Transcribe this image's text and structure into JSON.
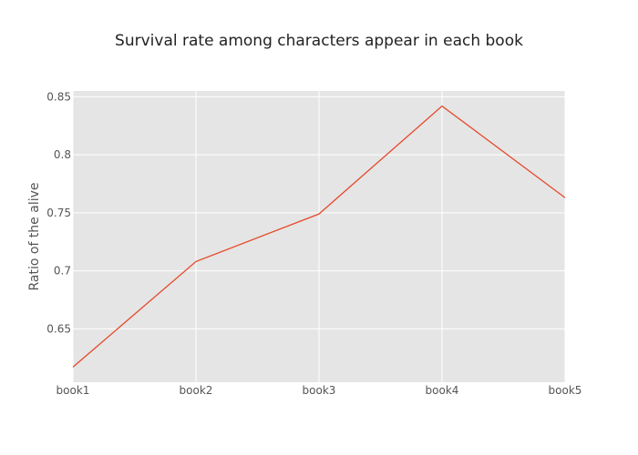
{
  "chart_data": {
    "type": "line",
    "title": "Survival rate among characters appear in each book",
    "xlabel": "",
    "ylabel": "Ratio of the alive",
    "categories": [
      "book1",
      "book2",
      "book3",
      "book4",
      "book5"
    ],
    "series": [
      {
        "values": [
          0.617,
          0.708,
          0.749,
          0.842,
          0.763
        ],
        "color": "#e5492a"
      }
    ],
    "ylim": [
      0.604,
      0.855
    ],
    "yticks": [
      0.65,
      0.7,
      0.75,
      0.8,
      0.85
    ],
    "ytick_labels": [
      "0.65",
      "0.7",
      "0.75",
      "0.8",
      "0.85"
    ],
    "grid": true,
    "legend": "none",
    "colors": {
      "plot_background": "#e5e5e5",
      "grid": "#ffffff",
      "line": "#e5492a"
    }
  }
}
